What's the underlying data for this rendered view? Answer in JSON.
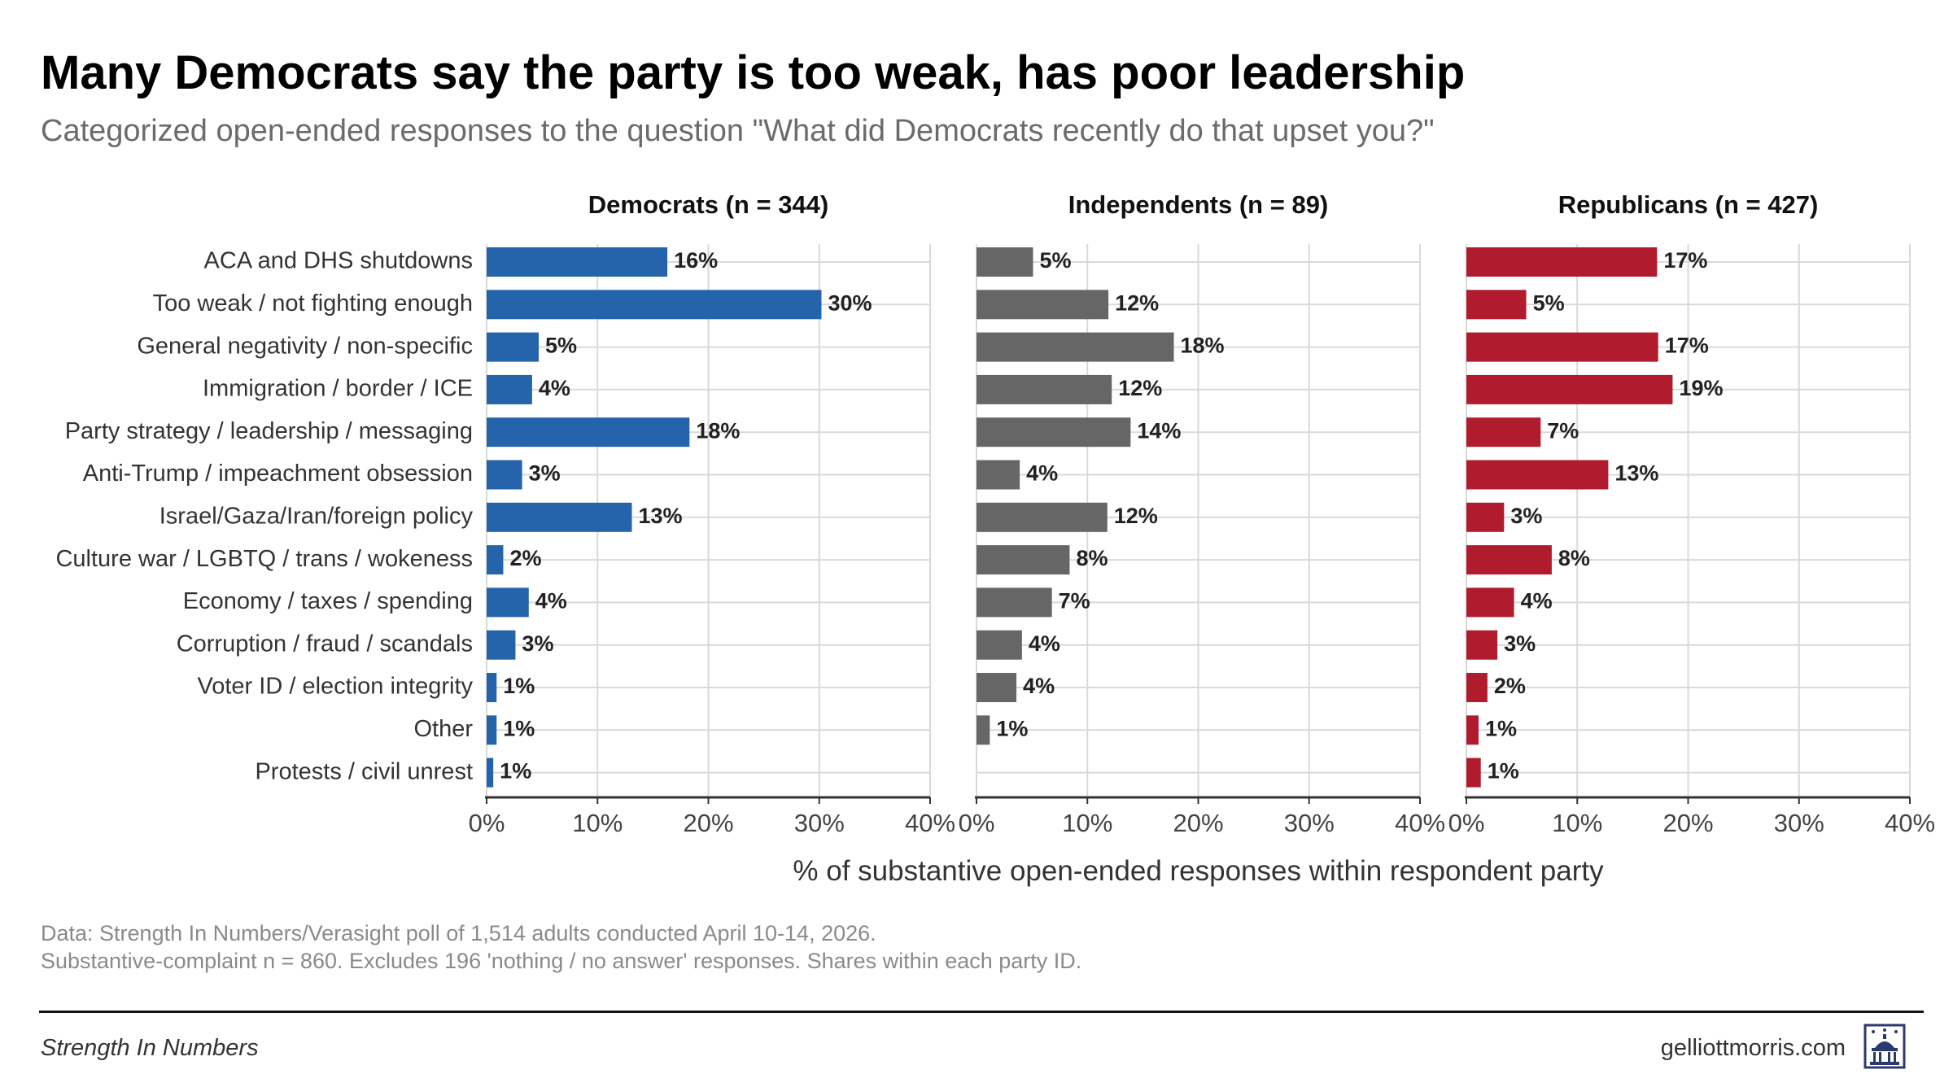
{
  "title": "Many Democrats say the party is too weak, has poor leadership",
  "subtitle": "Categorized open-ended responses to the question \"What did Democrats recently do that upset you?\"",
  "footer": {
    "source_line1": "Data: Strength In Numbers/Verasight poll of 1,514 adults conducted April 10-14, 2026.",
    "source_line2": "Substantive-complaint n = 860. Excludes 196 'nothing / no answer' responses. Shares within each party ID.",
    "brand": "Strength In Numbers",
    "website": "gelliottmorris.com"
  },
  "colors": {
    "Democrats": "#2563ab",
    "Independents": "#666666",
    "Republicans": "#b01c2e",
    "grid": "#d9d9d9",
    "axis": "#333333"
  },
  "chart_data": {
    "type": "bar",
    "orientation": "horizontal",
    "categories": [
      "ACA and DHS shutdowns",
      "Too weak / not fighting enough",
      "General negativity / non-specific",
      "Immigration / border / ICE",
      "Party strategy / leadership / messaging",
      "Anti-Trump / impeachment obsession",
      "Israel/Gaza/Iran/foreign policy",
      "Culture war / LGBTQ / trans / wokeness",
      "Economy / taxes / spending",
      "Corruption / fraud / scandals",
      "Voter ID / election integrity",
      "Other",
      "Protests / civil unrest"
    ],
    "series": [
      {
        "name": "Democrats",
        "panel_title": "Democrats (n = 344)",
        "values": [
          16,
          30,
          5,
          4,
          18,
          3,
          13,
          2,
          4,
          3,
          1,
          1,
          1
        ],
        "true_values": [
          16.3,
          30.2,
          4.7,
          4.1,
          18.3,
          3.2,
          13.1,
          1.5,
          3.8,
          2.6,
          0.9,
          0.9,
          0.6
        ],
        "labels": [
          "16%",
          "30%",
          "5%",
          "4%",
          "18%",
          "3%",
          "13%",
          "2%",
          "4%",
          "3%",
          "1%",
          "1%",
          "1%"
        ]
      },
      {
        "name": "Independents",
        "panel_title": "Independents (n = 89)",
        "values": [
          5,
          12,
          18,
          12,
          14,
          4,
          12,
          8,
          7,
          4,
          4,
          1,
          0
        ],
        "true_values": [
          5.1,
          11.9,
          17.8,
          12.2,
          13.9,
          3.9,
          11.8,
          8.4,
          6.8,
          4.1,
          3.6,
          1.2,
          0
        ],
        "labels": [
          "5%",
          "12%",
          "18%",
          "12%",
          "14%",
          "4%",
          "12%",
          "8%",
          "7%",
          "4%",
          "4%",
          "1%",
          ""
        ]
      },
      {
        "name": "Republicans",
        "panel_title": "Republicans (n = 427)",
        "values": [
          17,
          5,
          17,
          19,
          7,
          13,
          3,
          8,
          4,
          3,
          2,
          1,
          1
        ],
        "true_values": [
          17.2,
          5.4,
          17.3,
          18.6,
          6.7,
          12.8,
          3.4,
          7.7,
          4.3,
          2.8,
          1.9,
          1.1,
          1.3
        ],
        "labels": [
          "17%",
          "5%",
          "17%",
          "19%",
          "7%",
          "13%",
          "3%",
          "8%",
          "4%",
          "3%",
          "2%",
          "1%",
          "1%"
        ]
      }
    ],
    "x_ticks": [
      "0%",
      "10%",
      "20%",
      "30%",
      "40%"
    ],
    "xlim": [
      0,
      40
    ],
    "xlabel": "% of substantive open-ended responses within respondent party",
    "ylabel": "",
    "grid": true
  }
}
